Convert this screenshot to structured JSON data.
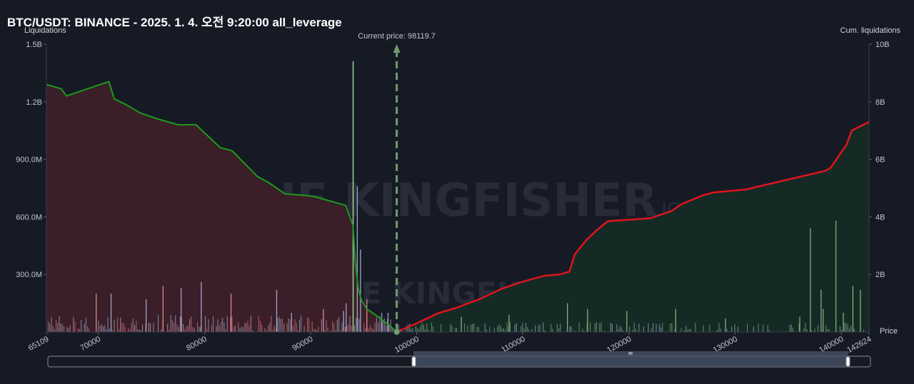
{
  "title": "BTC/USDT: BINANCE - 2025. 1. 4. 오전 9:20:00 all_leverage",
  "watermark": {
    "text": "THE KINGFISHER",
    "suffix": ".IO"
  },
  "colors": {
    "background": "#161a25",
    "short_cum_line": "#1d9a1d",
    "long_cum_line": "#e0141e",
    "short_area": "#3a1e28",
    "long_area": "#152a24",
    "current_price_line": "#6f9c6f"
  },
  "chart_data": {
    "type": "area",
    "left_axis": {
      "label": "Liquidations",
      "ticks": [
        "1.5B",
        "1.2B",
        "900.0M",
        "600.0M",
        "300.0M"
      ],
      "tick_values": [
        1500000000,
        1200000000,
        900000000,
        600000000,
        300000000
      ],
      "range": [
        0,
        1500000000
      ]
    },
    "right_axis": {
      "label": "Cum. liquidations",
      "ticks": [
        "10B",
        "8B",
        "6B",
        "4B",
        "2B"
      ],
      "tick_values": [
        10000000000,
        8000000000,
        6000000000,
        4000000000,
        2000000000
      ],
      "range": [
        0,
        10000000000
      ]
    },
    "x_axis": {
      "label": "Price",
      "range": [
        65109,
        142624
      ],
      "tick_labels": [
        "65109",
        "70000",
        "80000",
        "90000",
        "100000",
        "110000",
        "120000",
        "130000",
        "140000",
        "142624"
      ]
    },
    "current_price": {
      "label": "Current price: 98119.7",
      "value": 98119.7
    },
    "cumulative_short_side": {
      "x": [
        65109,
        66500,
        67000,
        71000,
        71500,
        72600,
        74000,
        75600,
        77500,
        79200,
        81500,
        82600,
        85000,
        86000,
        87600,
        89400,
        90400,
        93300,
        94000,
        94200,
        94500,
        94800,
        95300,
        96500,
        97500,
        98119.7
      ],
      "y": [
        8600000000.0,
        8450000000.0,
        8200000000.0,
        8700000000.0,
        8100000000.0,
        7900000000.0,
        7600000000.0,
        7400000000.0,
        7200000000.0,
        7200000000.0,
        6400000000.0,
        6300000000.0,
        5400000000.0,
        5200000000.0,
        4800000000.0,
        4750000000.0,
        4700000000.0,
        4400000000.0,
        3700000000.0,
        2500000000.0,
        1500000000.0,
        1100000000.0,
        800000000.0,
        500000000.0,
        200000000.0,
        0
      ]
    },
    "cumulative_long_side": {
      "x": [
        98119.7,
        100000,
        102000,
        103800,
        106000,
        108000,
        110000,
        112000,
        113500,
        114400,
        114900,
        116000,
        117000,
        118000,
        122000,
        124000,
        125000,
        127000,
        128000,
        131000,
        138500,
        139000,
        140500,
        141000,
        142624
      ],
      "y": [
        0,
        300000000.0,
        650000000.0,
        850000000.0,
        1150000000.0,
        1500000000.0,
        1750000000.0,
        1950000000.0,
        2000000000.0,
        2100000000.0,
        2700000000.0,
        3200000000.0,
        3550000000.0,
        3850000000.0,
        3950000000.0,
        4200000000.0,
        4450000000.0,
        4750000000.0,
        4850000000.0,
        4950000000.0,
        5600000000.0,
        5700000000.0,
        6500000000.0,
        7000000000.0,
        7300000000.0
      ]
    },
    "liquidation_spikes": {
      "x": [
        69800,
        71200,
        74500,
        76100,
        77800,
        79700,
        82500,
        86800,
        88200,
        91200,
        93100,
        93350,
        94000,
        94400,
        94700,
        95300,
        96700,
        97300,
        104200,
        108700,
        114200,
        116100,
        119800,
        124400,
        129100,
        136100,
        137100,
        138100,
        138300,
        139500,
        140200,
        141100,
        141800
      ],
      "y": [
        200000000.0,
        200000000.0,
        170000000.0,
        240000000.0,
        230000000.0,
        260000000.0,
        200000000.0,
        220000000.0,
        100000000.0,
        120000000.0,
        110000000.0,
        150000000.0,
        1410000000.0,
        760000000.0,
        430000000.0,
        170000000.0,
        100000000.0,
        100000000.0,
        80000000.0,
        90000000.0,
        150000000.0,
        120000000.0,
        110000000.0,
        120000000.0,
        70000000.0,
        80000000.0,
        540000000.0,
        220000000.0,
        120000000.0,
        580000000.0,
        100000000.0,
        240000000.0,
        220000000.0
      ]
    },
    "grid": false
  }
}
